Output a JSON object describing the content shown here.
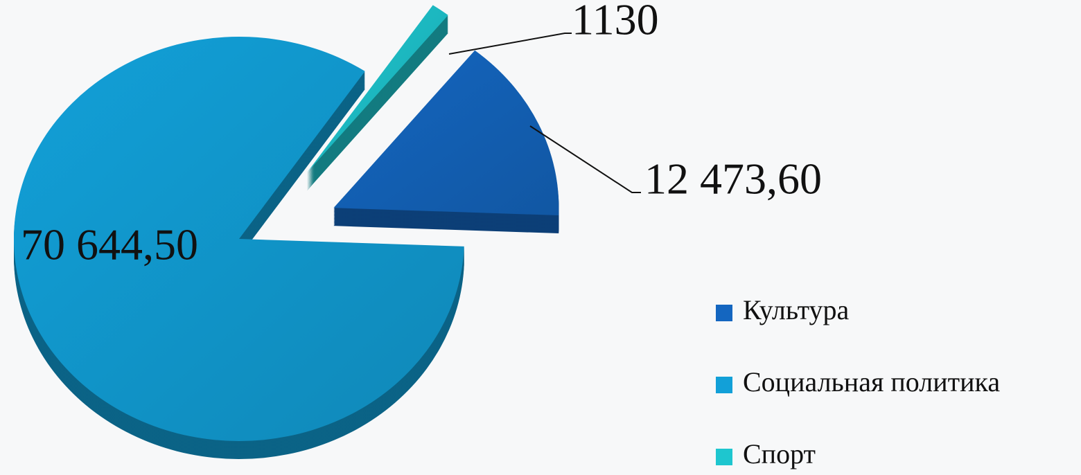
{
  "chart_data": {
    "type": "pie",
    "categories": [
      "Культура",
      "Социальная политика",
      "Спорт"
    ],
    "values": [
      12473.6,
      70644.5,
      1130
    ],
    "value_labels": [
      "12 473,60",
      "70 644,50",
      "1130"
    ],
    "colors": [
      "#1466c0",
      "#12a0d8",
      "#1ec6cf"
    ],
    "legend": "right"
  }
}
